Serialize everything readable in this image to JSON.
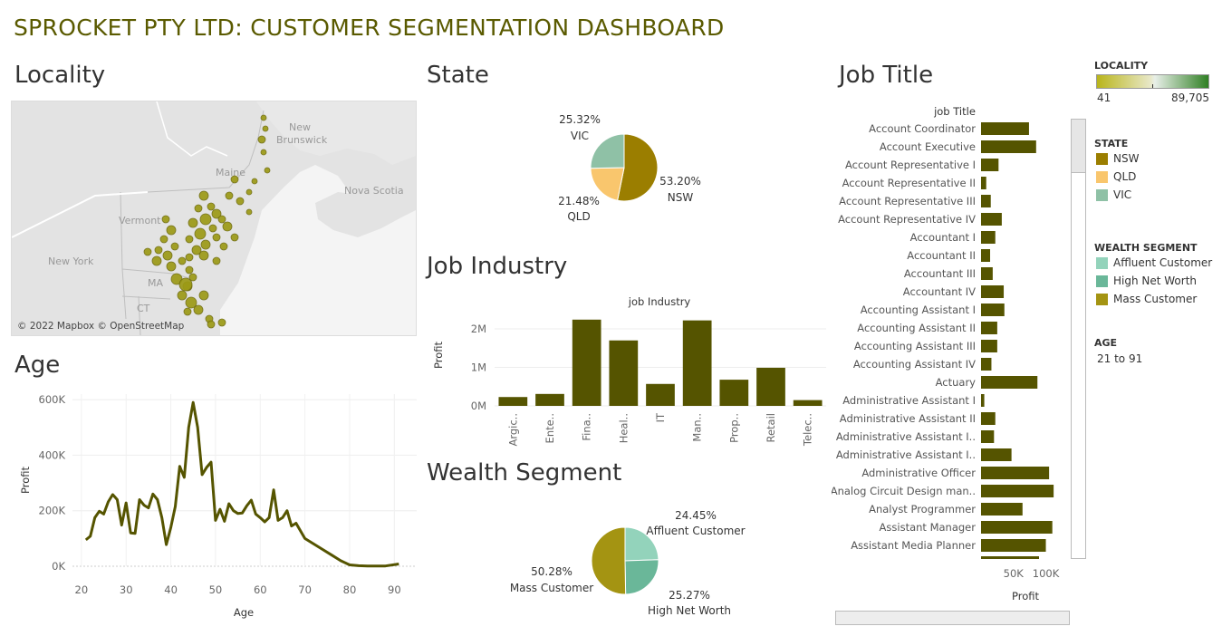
{
  "title": "SPROCKET PTY LTD: CUSTOMER SEGMENTATION DASHBOARD",
  "sections": {
    "locality": "Locality",
    "state": "State",
    "job_industry": "Job Industry",
    "wealth_segment": "Wealth Segment",
    "age": "Age",
    "job_title": "Job Title"
  },
  "map": {
    "attribution": "© 2022 Mapbox © OpenStreetMap",
    "labels": [
      "New Brunswick",
      "Maine",
      "Nova Scotia",
      "Vermont",
      "New York",
      "MA",
      "CT"
    ],
    "label_new": "New",
    "label_brunswick": "Brunswick",
    "color": "#9c9a16"
  },
  "legend": {
    "locality_title": "LOCALITY",
    "locality_min": "41",
    "locality_max": "89,705",
    "state_title": "STATE",
    "state_items": [
      {
        "label": "NSW",
        "color": "#9b7e00"
      },
      {
        "label": "QLD",
        "color": "#f9c66d"
      },
      {
        "label": "VIC",
        "color": "#8fc1a6"
      }
    ],
    "wealth_title": "WEALTH SEGMENT",
    "wealth_items": [
      {
        "label": "Affluent Customer",
        "color": "#93d3bb"
      },
      {
        "label": "High Net Worth",
        "color": "#6ab799"
      },
      {
        "label": "Mass Customer",
        "color": "#a49412"
      }
    ],
    "age_title": "AGE",
    "age_range": "21 to 91"
  },
  "chart_data": [
    {
      "id": "state",
      "type": "pie",
      "slices": [
        {
          "label": "NSW",
          "value": 53.2,
          "text": "53.20%",
          "color": "#9b7e00"
        },
        {
          "label": "QLD",
          "value": 21.48,
          "text": "21.48%",
          "color": "#f9c66d"
        },
        {
          "label": "VIC",
          "value": 25.32,
          "text": "25.32%",
          "color": "#8fc1a6"
        }
      ]
    },
    {
      "id": "job_industry",
      "type": "bar",
      "title": "job Industry",
      "ylabel": "Profit",
      "ylim": [
        0,
        2400000
      ],
      "yticks": [
        {
          "v": 0,
          "t": "0M"
        },
        {
          "v": 1000000,
          "t": "1M"
        },
        {
          "v": 2000000,
          "t": "2M"
        }
      ],
      "categories": [
        "Argic..",
        "Ente..",
        "Fina..",
        "Heal..",
        "IT",
        "Man..",
        "Prop..",
        "Retail",
        "Telec.."
      ],
      "values": [
        230000,
        310000,
        2240000,
        1700000,
        570000,
        2220000,
        680000,
        990000,
        150000
      ],
      "color": "#555400"
    },
    {
      "id": "wealth_segment",
      "type": "pie",
      "slices": [
        {
          "label": "Affluent Customer",
          "value": 24.45,
          "text": "24.45%",
          "color": "#93d3bb"
        },
        {
          "label": "High Net Worth",
          "value": 25.27,
          "text": "25.27%",
          "color": "#6ab799"
        },
        {
          "label": "Mass Customer",
          "value": 50.28,
          "text": "50.28%",
          "color": "#a49412"
        }
      ]
    },
    {
      "id": "age",
      "type": "line",
      "xlabel": "Age",
      "ylabel": "Profit",
      "xlim": [
        18,
        95
      ],
      "ylim": [
        0,
        620000
      ],
      "xticks": [
        20,
        30,
        40,
        50,
        60,
        70,
        80,
        90
      ],
      "yticks": [
        {
          "v": 0,
          "t": "0K"
        },
        {
          "v": 200000,
          "t": "200K"
        },
        {
          "v": 400000,
          "t": "400K"
        },
        {
          "v": 600000,
          "t": "600K"
        }
      ],
      "x": [
        21,
        22,
        23,
        24,
        25,
        26,
        27,
        28,
        29,
        30,
        31,
        32,
        33,
        34,
        35,
        36,
        37,
        38,
        39,
        40,
        41,
        42,
        43,
        44,
        45,
        46,
        47,
        48,
        49,
        50,
        51,
        52,
        53,
        54,
        55,
        56,
        57,
        58,
        59,
        60,
        61,
        62,
        63,
        64,
        65,
        66,
        67,
        68,
        70,
        72,
        74,
        76,
        78,
        80,
        82,
        84,
        86,
        88,
        91
      ],
      "y": [
        95000,
        108000,
        175000,
        198000,
        188000,
        232000,
        258000,
        240000,
        148000,
        228000,
        120000,
        118000,
        240000,
        220000,
        210000,
        260000,
        240000,
        175000,
        78000,
        140000,
        215000,
        360000,
        320000,
        500000,
        590000,
        500000,
        330000,
        356000,
        375000,
        165000,
        205000,
        162000,
        225000,
        200000,
        190000,
        192000,
        218000,
        238000,
        188000,
        175000,
        160000,
        175000,
        275000,
        165000,
        175000,
        200000,
        145000,
        155000,
        100000,
        80000,
        60000,
        40000,
        20000,
        5000,
        2000,
        1000,
        1000,
        1000,
        8000
      ],
      "color": "#555400"
    },
    {
      "id": "job_title",
      "type": "bar",
      "orientation": "horizontal",
      "title": "job Title",
      "xlabel": "Profit",
      "xticks": [
        {
          "v": 50000,
          "t": "50K"
        },
        {
          "v": 100000,
          "t": "100K"
        }
      ],
      "xlim": [
        0,
        130000
      ],
      "categories": [
        "Account Coordinator",
        "Account Executive",
        "Account Representative I",
        "Account Representative II",
        "Account Representative III",
        "Account Representative IV",
        "Accountant I",
        "Accountant II",
        "Accountant III",
        "Accountant IV",
        "Accounting Assistant I",
        "Accounting Assistant II",
        "Accounting Assistant III",
        "Accounting Assistant IV",
        "Actuary",
        "Administrative Assistant I",
        "Administrative Assistant II",
        "Administrative Assistant I..",
        "Administrative Assistant I..",
        "Administrative Officer",
        "Analog Circuit Design man..",
        "Analyst Programmer",
        "Assistant Manager",
        "Assistant Media Planner"
      ],
      "values": [
        74000,
        85000,
        27000,
        8000,
        15000,
        32000,
        22000,
        14000,
        18000,
        35000,
        36000,
        25000,
        25000,
        16000,
        87000,
        5000,
        22000,
        20000,
        47000,
        105000,
        112000,
        64000,
        110000,
        100000
      ],
      "color": "#555400"
    }
  ]
}
